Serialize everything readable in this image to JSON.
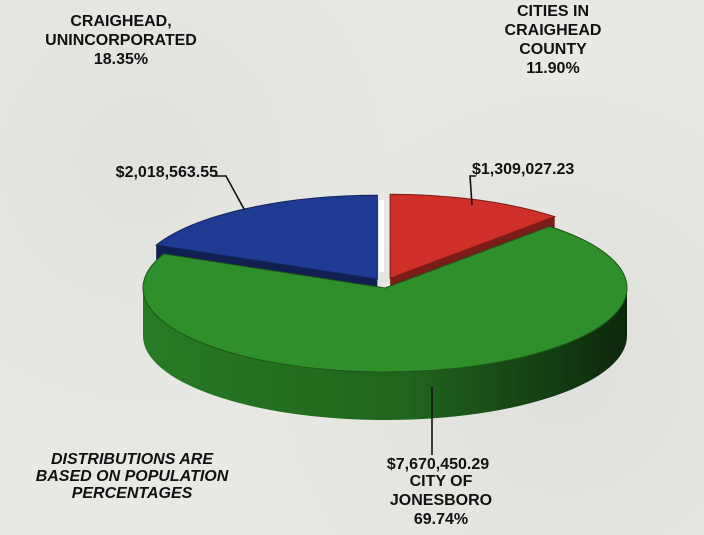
{
  "chart_data": {
    "type": "pie",
    "three_d": true,
    "legend": "none",
    "grid": false,
    "slices": [
      {
        "label_lines": [
          "CRAIGHEAD,",
          "UNINCORPORATED"
        ],
        "percent": 18.35,
        "percent_text": "18.35%",
        "amount": 2018563.55,
        "amount_text": "$2,018,563.55",
        "color": "#1f3a93"
      },
      {
        "label_lines": [
          "CITIES IN",
          "CRAIGHEAD",
          "COUNTY"
        ],
        "percent": 11.9,
        "percent_text": "11.90%",
        "amount": 1309027.23,
        "amount_text": "$1,309,027.23",
        "color": "#cf2f28"
      },
      {
        "label_lines": [
          "CITY OF",
          "JONESBORO"
        ],
        "percent": 69.74,
        "percent_text": "69.74%",
        "amount": 7670450.29,
        "amount_text": "$7,670,450.29",
        "color": "#2f8f2a"
      }
    ],
    "note_lines": [
      "DISTRIBUTIONS ARE",
      "BASED ON POPULATION",
      "PERCENTAGES"
    ]
  }
}
